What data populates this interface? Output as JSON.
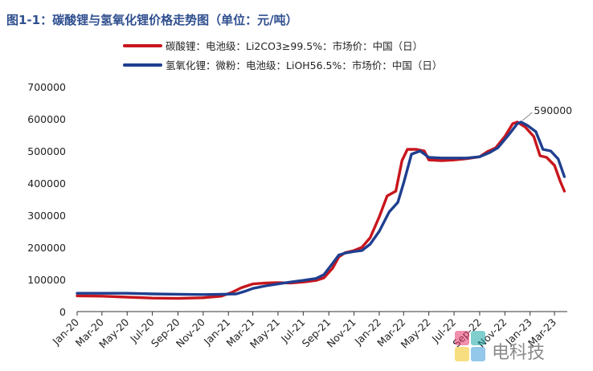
{
  "chart_data": {
    "type": "line",
    "title": "图1-1：碳酸锂与氢氧化锂价格走势图（单位：元/吨）",
    "ylim": [
      0,
      700000
    ],
    "yticks": [
      "0",
      "100000",
      "200000",
      "300000",
      "400000",
      "500000",
      "600000",
      "700000"
    ],
    "ytick_values": [
      0,
      100000,
      200000,
      300000,
      400000,
      500000,
      600000,
      700000
    ],
    "xlim": [
      "2020-01-01",
      "2023-04-01"
    ],
    "xticks": [
      "Jan-20",
      "Mar-20",
      "May-20",
      "Jul-20",
      "Sep-20",
      "Nov-20",
      "Jan-21",
      "Mar-21",
      "May-21",
      "Jul-21",
      "Sep-21",
      "Nov-21",
      "Jan-22",
      "Mar-22",
      "May-22",
      "Jul-22",
      "Sep-22",
      "Nov-22",
      "Jan-23",
      "Mar-23"
    ],
    "xtick_dates": [
      "2020-01-01",
      "2020-03-01",
      "2020-05-01",
      "2020-07-01",
      "2020-09-01",
      "2020-11-01",
      "2021-01-01",
      "2021-03-01",
      "2021-05-01",
      "2021-07-01",
      "2021-09-01",
      "2021-11-01",
      "2022-01-01",
      "2022-03-01",
      "2022-05-01",
      "2022-07-01",
      "2022-09-01",
      "2022-11-01",
      "2023-01-01",
      "2023-03-01"
    ],
    "grid": false,
    "legend_position": "top-left",
    "annotation": {
      "text": "590000",
      "date": "2022-12-10",
      "value": 590000
    },
    "series": [
      {
        "name": "碳酸锂：电池级：Li2CO3≥99.5%：市场价：中国（日）",
        "color": "#c8161d",
        "points": [
          [
            "2020-01-01",
            49000
          ],
          [
            "2020-03-01",
            48000
          ],
          [
            "2020-05-01",
            45000
          ],
          [
            "2020-07-01",
            42000
          ],
          [
            "2020-09-01",
            41000
          ],
          [
            "2020-11-01",
            43000
          ],
          [
            "2020-12-15",
            48000
          ],
          [
            "2021-01-10",
            60000
          ],
          [
            "2021-02-01",
            74000
          ],
          [
            "2021-03-01",
            86000
          ],
          [
            "2021-04-01",
            89000
          ],
          [
            "2021-05-01",
            90000
          ],
          [
            "2021-06-01",
            89000
          ],
          [
            "2021-07-01",
            92000
          ],
          [
            "2021-08-01",
            97000
          ],
          [
            "2021-08-20",
            105000
          ],
          [
            "2021-09-10",
            135000
          ],
          [
            "2021-09-25",
            170000
          ],
          [
            "2021-10-10",
            183000
          ],
          [
            "2021-11-01",
            190000
          ],
          [
            "2021-11-20",
            200000
          ],
          [
            "2021-12-10",
            230000
          ],
          [
            "2022-01-01",
            295000
          ],
          [
            "2022-01-20",
            360000
          ],
          [
            "2022-02-10",
            375000
          ],
          [
            "2022-02-25",
            470000
          ],
          [
            "2022-03-10",
            505000
          ],
          [
            "2022-04-01",
            505000
          ],
          [
            "2022-04-20",
            500000
          ],
          [
            "2022-05-01",
            472000
          ],
          [
            "2022-06-01",
            470000
          ],
          [
            "2022-07-01",
            472000
          ],
          [
            "2022-08-01",
            476000
          ],
          [
            "2022-09-01",
            482000
          ],
          [
            "2022-09-20",
            498000
          ],
          [
            "2022-10-10",
            510000
          ],
          [
            "2022-11-01",
            545000
          ],
          [
            "2022-11-20",
            585000
          ],
          [
            "2022-12-01",
            590000
          ],
          [
            "2022-12-20",
            575000
          ],
          [
            "2023-01-10",
            545000
          ],
          [
            "2023-01-25",
            485000
          ],
          [
            "2023-02-10",
            480000
          ],
          [
            "2023-03-01",
            455000
          ],
          [
            "2023-03-15",
            405000
          ],
          [
            "2023-03-25",
            375000
          ]
        ]
      },
      {
        "name": "氢氧化锂：微粉：电池级：LiOH56.5%：市场价：中国（日）",
        "color": "#1f3f8f",
        "points": [
          [
            "2020-01-01",
            57000
          ],
          [
            "2020-03-01",
            57000
          ],
          [
            "2020-05-01",
            57000
          ],
          [
            "2020-07-01",
            55000
          ],
          [
            "2020-09-01",
            54000
          ],
          [
            "2020-11-01",
            53000
          ],
          [
            "2020-12-20",
            54000
          ],
          [
            "2021-01-20",
            55000
          ],
          [
            "2021-02-10",
            63000
          ],
          [
            "2021-03-01",
            72000
          ],
          [
            "2021-04-01",
            80000
          ],
          [
            "2021-05-01",
            86000
          ],
          [
            "2021-06-01",
            92000
          ],
          [
            "2021-07-01",
            97000
          ],
          [
            "2021-08-01",
            103000
          ],
          [
            "2021-08-20",
            115000
          ],
          [
            "2021-09-10",
            150000
          ],
          [
            "2021-09-25",
            176000
          ],
          [
            "2021-10-10",
            182000
          ],
          [
            "2021-11-01",
            187000
          ],
          [
            "2021-11-20",
            190000
          ],
          [
            "2021-12-10",
            210000
          ],
          [
            "2022-01-01",
            250000
          ],
          [
            "2022-01-25",
            310000
          ],
          [
            "2022-02-15",
            340000
          ],
          [
            "2022-03-01",
            400000
          ],
          [
            "2022-03-20",
            490000
          ],
          [
            "2022-04-10",
            500000
          ],
          [
            "2022-05-01",
            480000
          ],
          [
            "2022-06-01",
            478000
          ],
          [
            "2022-07-01",
            478000
          ],
          [
            "2022-08-01",
            478000
          ],
          [
            "2022-09-01",
            482000
          ],
          [
            "2022-09-25",
            495000
          ],
          [
            "2022-10-15",
            510000
          ],
          [
            "2022-11-10",
            550000
          ],
          [
            "2022-12-01",
            585000
          ],
          [
            "2022-12-10",
            590000
          ],
          [
            "2022-12-25",
            580000
          ],
          [
            "2023-01-15",
            560000
          ],
          [
            "2023-02-01",
            505000
          ],
          [
            "2023-02-20",
            500000
          ],
          [
            "2023-03-10",
            475000
          ],
          [
            "2023-03-25",
            420000
          ]
        ]
      }
    ]
  },
  "watermark": {
    "text": "电科技",
    "colors": [
      "#e6336a",
      "#1aa6a6",
      "#f0c419",
      "#3b9ad9"
    ]
  }
}
